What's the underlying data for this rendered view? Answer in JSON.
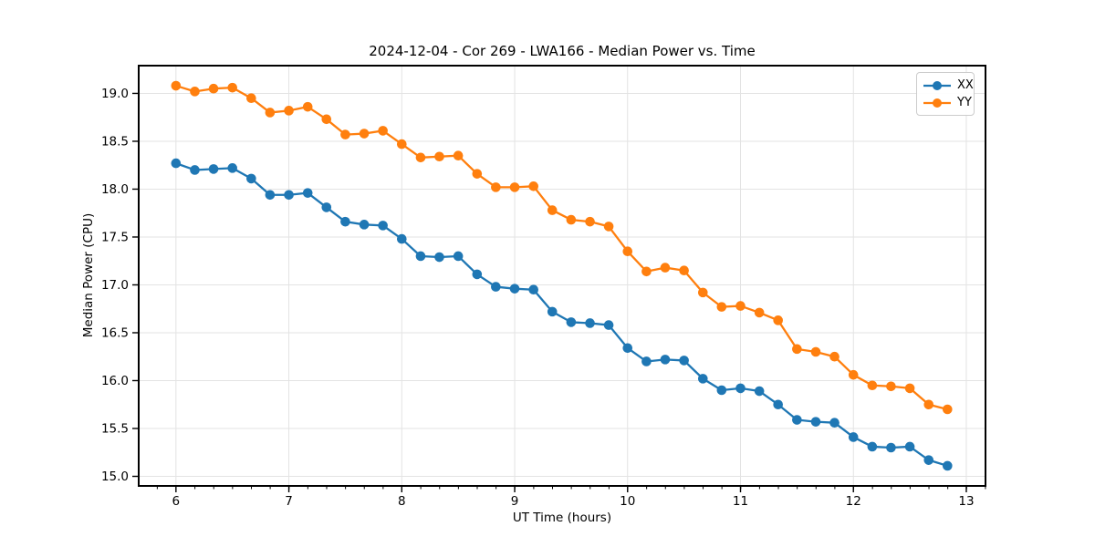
{
  "chart_data": {
    "type": "line",
    "title": "2024-12-04 - Cor 269 - LWA166 - Median Power vs. Time",
    "xlabel": "UT Time (hours)",
    "ylabel": "Median Power (CPU)",
    "xlim": [
      5.67,
      13.17
    ],
    "ylim": [
      14.9,
      19.29
    ],
    "xticks": [
      6,
      7,
      8,
      9,
      10,
      11,
      12,
      13
    ],
    "yticks": [
      15.0,
      15.5,
      16.0,
      16.5,
      17.0,
      17.5,
      18.0,
      18.5,
      19.0
    ],
    "x_minor_step_hours": 0.1667,
    "grid": true,
    "legend_position": "upper right",
    "x": [
      6.0,
      6.167,
      6.333,
      6.5,
      6.667,
      6.833,
      7.0,
      7.167,
      7.333,
      7.5,
      7.667,
      7.833,
      8.0,
      8.167,
      8.333,
      8.5,
      8.667,
      8.833,
      9.0,
      9.167,
      9.333,
      9.5,
      9.667,
      9.833,
      10.0,
      10.167,
      10.333,
      10.5,
      10.667,
      10.833,
      11.0,
      11.167,
      11.333,
      11.5,
      11.667,
      11.833,
      12.0,
      12.167,
      12.333,
      12.5,
      12.667,
      12.833
    ],
    "series": [
      {
        "name": "XX",
        "color": "#1f77b4",
        "values": [
          18.27,
          18.2,
          18.21,
          18.22,
          18.11,
          17.94,
          17.94,
          17.96,
          17.81,
          17.66,
          17.63,
          17.62,
          17.48,
          17.3,
          17.29,
          17.3,
          17.11,
          16.98,
          16.96,
          16.95,
          16.72,
          16.61,
          16.6,
          16.58,
          16.34,
          16.2,
          16.22,
          16.21,
          16.02,
          15.9,
          15.92,
          15.89,
          15.75,
          15.59,
          15.57,
          15.56,
          15.41,
          15.31,
          15.3,
          15.31,
          15.17,
          15.11
        ]
      },
      {
        "name": "YY",
        "color": "#ff7f0e",
        "values": [
          19.08,
          19.02,
          19.05,
          19.06,
          18.95,
          18.8,
          18.82,
          18.86,
          18.73,
          18.57,
          18.58,
          18.61,
          18.47,
          18.33,
          18.34,
          18.35,
          18.16,
          18.02,
          18.02,
          18.03,
          17.78,
          17.68,
          17.66,
          17.61,
          17.35,
          17.14,
          17.18,
          17.15,
          16.92,
          16.77,
          16.78,
          16.71,
          16.63,
          16.33,
          16.3,
          16.25,
          16.06,
          15.95,
          15.94,
          15.92,
          15.75,
          15.7
        ]
      }
    ],
    "style": {
      "grid_color": "#e3e3e3",
      "spine_color": "#000000",
      "background": "#ffffff",
      "marker": "circle"
    }
  }
}
